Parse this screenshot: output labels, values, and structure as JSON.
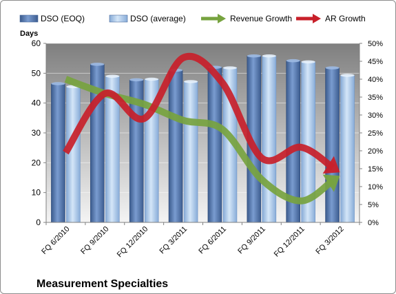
{
  "chart_data": {
    "type": "bar",
    "title": "Measurement Specialties",
    "ylabel": "Days",
    "ylim": [
      0,
      60
    ],
    "y_ticks": [
      "0",
      "10",
      "20",
      "30",
      "40",
      "50",
      "60"
    ],
    "y2lim": [
      0,
      50
    ],
    "y2_ticks": [
      "0%",
      "5%",
      "10%",
      "15%",
      "20%",
      "25%",
      "30%",
      "35%",
      "40%",
      "45%",
      "50%"
    ],
    "categories": [
      "FQ 6/2010",
      "FQ 9/2010",
      "FQ 12/2010",
      "FQ 3/2011",
      "FQ 6/2011",
      "FQ 9/2011",
      "FQ 12/2011",
      "FQ 3/2012"
    ],
    "series": [
      {
        "name": "DSO (EOQ)",
        "axis": "left",
        "kind": "bar",
        "color": "#5a7db4",
        "values": [
          46.5,
          53,
          47.8,
          51,
          52,
          55.8,
          54.2,
          51.8
        ]
      },
      {
        "name": "DSO (average)",
        "axis": "left",
        "kind": "bar",
        "color": "#a6c4e8",
        "values": [
          45.5,
          49,
          48,
          47.2,
          51.8,
          55.8,
          53.8,
          49.3
        ]
      },
      {
        "name": "Revenue Growth",
        "axis": "right",
        "kind": "arrow-line",
        "color": "#77a33f",
        "values": [
          40,
          36,
          33,
          28.5,
          26,
          12,
          6,
          13
        ]
      },
      {
        "name": "AR Growth",
        "axis": "right",
        "kind": "arrow-line",
        "color": "#c8202a",
        "values": [
          19.5,
          36,
          29,
          46,
          39,
          18,
          21,
          14
        ]
      }
    ],
    "grid": true,
    "legend": "top"
  }
}
